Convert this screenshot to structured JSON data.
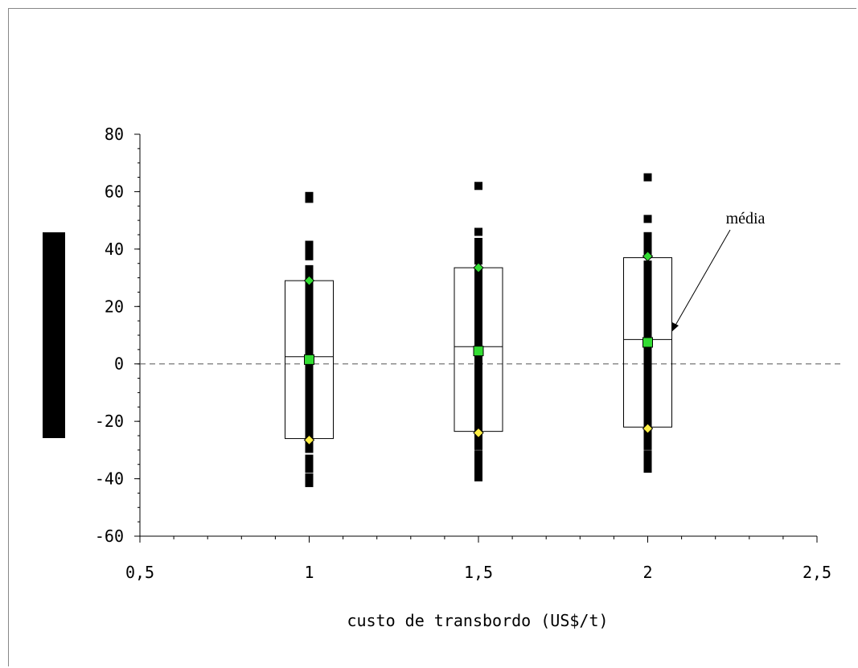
{
  "chart_data": {
    "type": "scatter",
    "title": "",
    "xlabel": "custo de transbordo (US$/t)",
    "ylabel": "",
    "xlim": [
      0.5,
      2.5
    ],
    "ylim": [
      -60,
      80
    ],
    "x_ticks": [
      "0,5",
      "1",
      "1,5",
      "2",
      "2,5"
    ],
    "y_ticks": [
      "80",
      "60",
      "40",
      "20",
      "0",
      "-20",
      "-40",
      "-60"
    ],
    "reference_line_y": 0,
    "annotation": "média",
    "groups": [
      {
        "x": 1,
        "box": {
          "low": -26,
          "high": 29,
          "mid": 2.5
        },
        "mean": 1.5,
        "diamond_high": 29,
        "diamond_low": -26.5,
        "dense_range": [
          -31,
          29
        ],
        "outliers": [
          58.5,
          57.5,
          41.5,
          40.5,
          39,
          37.5,
          33,
          30.5,
          -33,
          -34.5,
          -35.5,
          -36.5,
          -39.5,
          -41.5
        ]
      },
      {
        "x": 1.5,
        "box": {
          "low": -23.5,
          "high": 33.5,
          "mid": 6
        },
        "mean": 4.5,
        "diamond_high": 33.5,
        "diamond_low": -24,
        "dense_range": [
          -30,
          33
        ],
        "outliers": [
          62,
          46,
          42.5,
          40,
          38,
          36,
          -31.5,
          -33,
          -34.5,
          -36,
          -38.5,
          -39.5
        ]
      },
      {
        "x": 2,
        "box": {
          "low": -22,
          "high": 37,
          "mid": 8.5
        },
        "mean": 7.5,
        "diamond_high": 37.5,
        "diamond_low": -22.5,
        "dense_range": [
          -30,
          36
        ],
        "outliers": [
          65,
          50.5,
          44.5,
          42.5,
          40.5,
          39.5,
          -31.5,
          -33,
          -34,
          -36.5
        ]
      }
    ],
    "grid": false,
    "legend": "none"
  }
}
